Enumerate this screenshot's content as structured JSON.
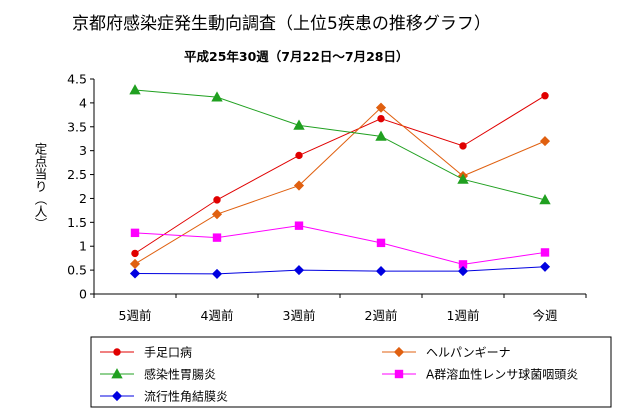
{
  "chart_data": {
    "type": "line",
    "title": "京都府感染症発生動向調査（上位5疾患の推移グラフ）",
    "subtitle": "平成25年30週（7月22日～7月28日）",
    "ylabel": "定点当り（人）",
    "xlabel": "",
    "categories": [
      "5週前",
      "4週前",
      "3週前",
      "2週前",
      "1週前",
      "今週"
    ],
    "ylim": [
      0,
      4.5
    ],
    "yticks": [
      "0",
      "0.5",
      "1",
      "1.5",
      "2",
      "2.5",
      "3",
      "3.5",
      "4",
      "4.5"
    ],
    "grid": false,
    "legend_position": "bottom",
    "series": [
      {
        "name": "手足口病",
        "color": "#e00000",
        "marker": "circle",
        "values": [
          0.85,
          1.97,
          2.9,
          3.67,
          3.1,
          4.15
        ]
      },
      {
        "name": "ヘルパンギーナ",
        "color": "#e06010",
        "marker": "diamond",
        "values": [
          0.63,
          1.67,
          2.27,
          3.9,
          2.47,
          3.2
        ]
      },
      {
        "name": "感染性胃腸炎",
        "color": "#20a020",
        "marker": "triangle",
        "values": [
          4.27,
          4.12,
          3.53,
          3.3,
          2.4,
          1.97
        ]
      },
      {
        "name": "A群溶血性レンサ球菌咽頭炎",
        "color": "#ff00ff",
        "marker": "square",
        "values": [
          1.28,
          1.18,
          1.43,
          1.07,
          0.62,
          0.87
        ]
      },
      {
        "name": "流行性角結膜炎",
        "color": "#0000e0",
        "marker": "diamond",
        "values": [
          0.43,
          0.42,
          0.5,
          0.48,
          0.48,
          0.57
        ]
      }
    ]
  }
}
